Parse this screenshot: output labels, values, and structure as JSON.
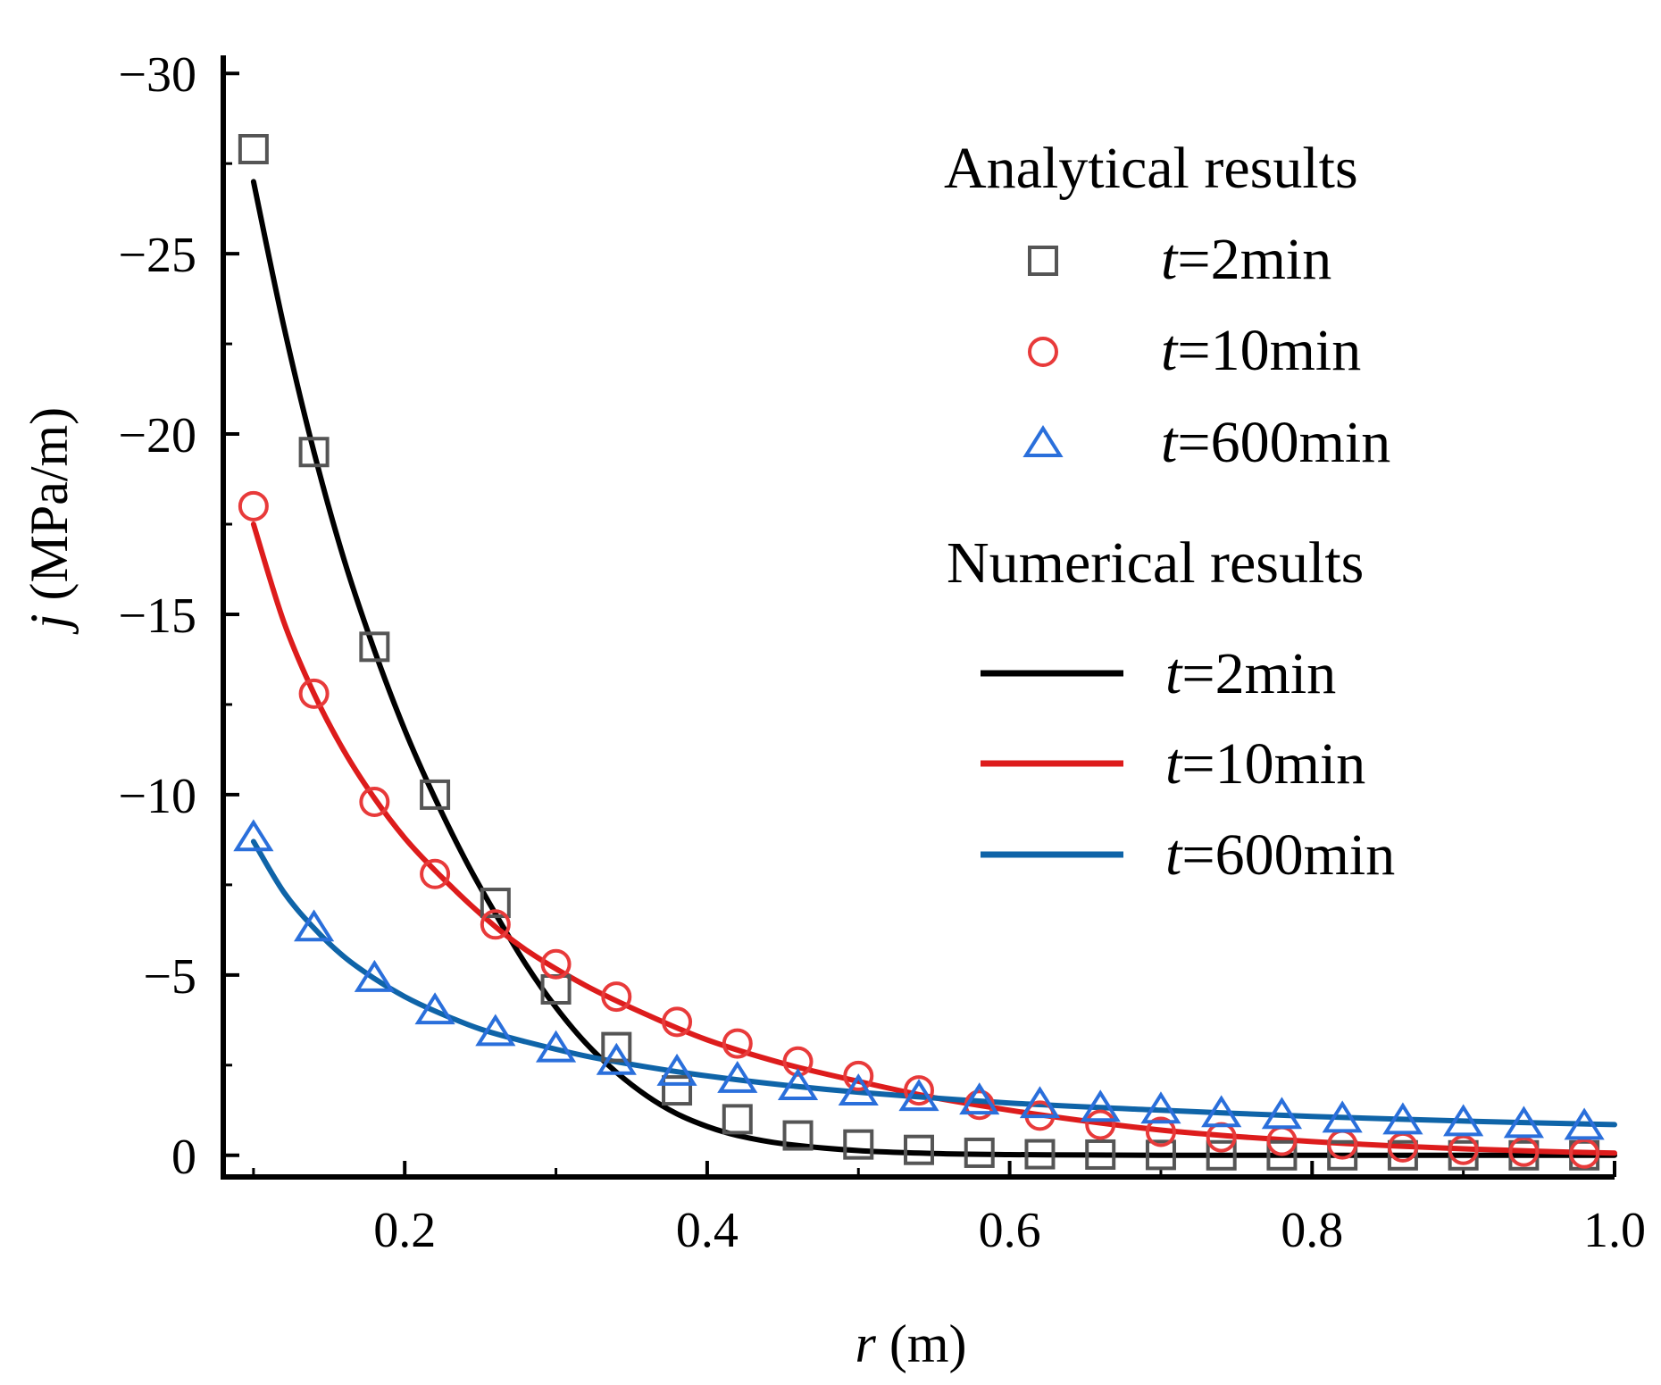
{
  "chart_data": {
    "type": "scatter",
    "xlabel": {
      "var": "r",
      "unit": " (m)"
    },
    "ylabel": {
      "var": "j",
      "unit": " (MPa/m)"
    },
    "xlim": [
      0.08,
      1.0
    ],
    "ylim": [
      0.6,
      -30.5
    ],
    "y_reversed": true,
    "x_ticks": [
      0.2,
      0.4,
      0.6,
      0.8,
      1.0
    ],
    "x_tick_labels": [
      "0.2",
      "0.4",
      "0.6",
      "0.8",
      "1.0"
    ],
    "y_ticks": [
      0,
      -5,
      -10,
      -15,
      -20,
      -25,
      -30
    ],
    "y_tick_labels": [
      "0",
      "−5",
      "−10",
      "−15",
      "−20",
      "−25",
      "−30"
    ],
    "grid": false,
    "legend": {
      "position": "top-right",
      "analytical_heading": "Analytical results",
      "numerical_heading": "Numerical results",
      "t_symbol": "t",
      "entries": [
        {
          "suffix": "=2min"
        },
        {
          "suffix": "=10min"
        },
        {
          "suffix": "=600min"
        }
      ]
    },
    "series": [
      {
        "name": "t=2min",
        "marker": "square",
        "marker_color": "#555555",
        "line_color": "#000000",
        "analytical_x": [
          0.1,
          0.14,
          0.18,
          0.22,
          0.26,
          0.3,
          0.34,
          0.38,
          0.42,
          0.46,
          0.5,
          0.54,
          0.58,
          0.62,
          0.66,
          0.7,
          0.74,
          0.78,
          0.82,
          0.86,
          0.9,
          0.94,
          0.98
        ],
        "analytical_y": [
          -27.9,
          -19.5,
          -14.1,
          -10.0,
          -7.0,
          -4.6,
          -3.0,
          -1.8,
          -1.0,
          -0.55,
          -0.3,
          -0.15,
          -0.07,
          -0.03,
          -0.02,
          -0.01,
          0,
          0,
          0,
          0,
          0,
          0,
          0
        ],
        "numerical_x": [
          0.1,
          0.12,
          0.14,
          0.16,
          0.18,
          0.2,
          0.22,
          0.24,
          0.26,
          0.28,
          0.3,
          0.32,
          0.34,
          0.36,
          0.38,
          0.4,
          0.42,
          0.45,
          0.5,
          0.55,
          0.6,
          0.65,
          0.7,
          0.8,
          0.9,
          1.0
        ],
        "numerical_y": [
          -27.0,
          -23.0,
          -19.5,
          -16.5,
          -14.0,
          -11.8,
          -9.9,
          -8.2,
          -6.7,
          -5.3,
          -4.1,
          -3.1,
          -2.3,
          -1.65,
          -1.15,
          -0.8,
          -0.55,
          -0.32,
          -0.13,
          -0.05,
          -0.02,
          -0.01,
          0,
          0,
          0,
          0
        ]
      },
      {
        "name": "t=10min",
        "marker": "circle",
        "marker_color": "#e83a3a",
        "line_color": "#dd1c1c",
        "analytical_x": [
          0.1,
          0.14,
          0.18,
          0.22,
          0.26,
          0.3,
          0.34,
          0.38,
          0.42,
          0.46,
          0.5,
          0.54,
          0.58,
          0.62,
          0.66,
          0.7,
          0.74,
          0.78,
          0.82,
          0.86,
          0.9,
          0.94,
          0.98
        ],
        "analytical_y": [
          -18.0,
          -12.8,
          -9.8,
          -7.8,
          -6.4,
          -5.3,
          -4.4,
          -3.7,
          -3.1,
          -2.6,
          -2.2,
          -1.8,
          -1.4,
          -1.1,
          -0.85,
          -0.65,
          -0.5,
          -0.4,
          -0.3,
          -0.22,
          -0.15,
          -0.1,
          -0.05
        ],
        "numerical_x": [
          0.1,
          0.12,
          0.14,
          0.16,
          0.18,
          0.2,
          0.22,
          0.25,
          0.28,
          0.32,
          0.36,
          0.4,
          0.45,
          0.5,
          0.55,
          0.6,
          0.65,
          0.7,
          0.75,
          0.8,
          0.85,
          0.9,
          0.95,
          1.0
        ],
        "numerical_y": [
          -17.5,
          -14.8,
          -12.8,
          -11.2,
          -9.9,
          -8.8,
          -7.9,
          -6.7,
          -5.7,
          -4.7,
          -3.9,
          -3.2,
          -2.55,
          -2.05,
          -1.6,
          -1.25,
          -0.95,
          -0.7,
          -0.52,
          -0.38,
          -0.27,
          -0.18,
          -0.11,
          -0.06
        ]
      },
      {
        "name": "t=600min",
        "marker": "triangle",
        "marker_color": "#2a6fdb",
        "line_color": "#0f64a8",
        "analytical_x": [
          0.1,
          0.14,
          0.18,
          0.22,
          0.26,
          0.3,
          0.34,
          0.38,
          0.42,
          0.46,
          0.5,
          0.54,
          0.58,
          0.62,
          0.66,
          0.7,
          0.74,
          0.78,
          0.82,
          0.86,
          0.9,
          0.94,
          0.98
        ],
        "analytical_y": [
          -8.8,
          -6.3,
          -4.9,
          -4.0,
          -3.4,
          -2.95,
          -2.6,
          -2.3,
          -2.1,
          -1.9,
          -1.75,
          -1.6,
          -1.5,
          -1.4,
          -1.3,
          -1.25,
          -1.15,
          -1.1,
          -1.0,
          -0.95,
          -0.9,
          -0.85,
          -0.8
        ],
        "numerical_x": [
          0.1,
          0.12,
          0.14,
          0.16,
          0.18,
          0.2,
          0.22,
          0.25,
          0.28,
          0.32,
          0.36,
          0.4,
          0.45,
          0.5,
          0.6,
          0.7,
          0.8,
          0.9,
          1.0
        ],
        "numerical_y": [
          -8.7,
          -7.3,
          -6.3,
          -5.5,
          -4.9,
          -4.4,
          -4.0,
          -3.5,
          -3.15,
          -2.75,
          -2.45,
          -2.2,
          -1.95,
          -1.75,
          -1.45,
          -1.25,
          -1.08,
          -0.95,
          -0.85
        ]
      }
    ]
  }
}
